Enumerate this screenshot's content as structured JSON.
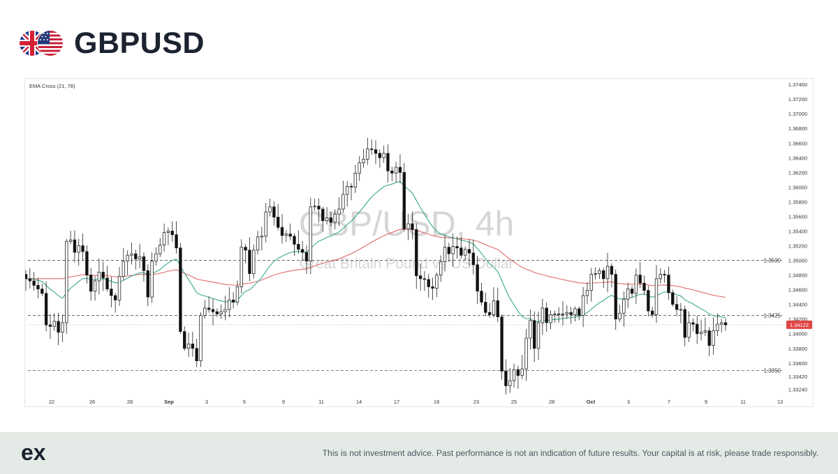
{
  "header": {
    "title": "GBPUSD",
    "flag_left": "uk-flag",
    "flag_right": "us-flag"
  },
  "chart": {
    "indicator_label": "EMA Cross (21, 78)",
    "watermark_title": "GBP/USD, 4h",
    "watermark_subtitle": "Great Britain Pound vs US Dollar",
    "current_price_label": "1.34122",
    "level_labels": [
      "1.3500",
      "1.3425",
      "1.3350"
    ]
  },
  "footer": {
    "logo_text": "ex",
    "disclaimer": "This is not investment advice. Past performance is not an indication of future results. Your capital is at risk, please trade responsibly."
  },
  "colors": {
    "bull": "#ffffff",
    "bear": "#111111",
    "ema_fast": "#3aa88f",
    "ema_slow": "#e06a6a",
    "price_tag": "#e14545",
    "footer_bg": "#e4ebe6"
  },
  "chart_data": {
    "type": "candlestick",
    "y_axis_ticks": [
      "1.37400",
      "1.37200",
      "1.37000",
      "1.36800",
      "1.36600",
      "1.36400",
      "1.36200",
      "1.36000",
      "1.35800",
      "1.35600",
      "1.35400",
      "1.35200",
      "1.35000",
      "1.34800",
      "1.34600",
      "1.34400",
      "1.34200",
      "1.34000",
      "1.33800",
      "1.33600",
      "1.33420",
      "1.33240"
    ],
    "x_axis_ticks": [
      "22",
      "26",
      "28",
      "Sep",
      "3",
      "5",
      "9",
      "11",
      "14",
      "17",
      "19",
      "23",
      "25",
      "28",
      "Oct",
      "3",
      "7",
      "9",
      "11",
      "13"
    ],
    "ylim": [
      1.3318,
      1.3742
    ],
    "horizontal_levels": [
      1.35,
      1.3425,
      1.335
    ],
    "current_price": 1.34122,
    "closes": [
      1.3475,
      1.3472,
      1.3466,
      1.3461,
      1.3455,
      1.3412,
      1.341,
      1.3417,
      1.3402,
      1.3415,
      1.3526,
      1.3528,
      1.3511,
      1.352,
      1.3512,
      1.348,
      1.3458,
      1.3472,
      1.3484,
      1.3476,
      1.3461,
      1.3452,
      1.3446,
      1.3478,
      1.3499,
      1.3507,
      1.3509,
      1.3502,
      1.3505,
      1.3486,
      1.345,
      1.3499,
      1.3509,
      1.3521,
      1.3538,
      1.354,
      1.3535,
      1.3517,
      1.3403,
      1.338,
      1.3386,
      1.338,
      1.3363,
      1.3425,
      1.3435,
      1.3433,
      1.343,
      1.3427,
      1.343,
      1.3433,
      1.3446,
      1.3443,
      1.3464,
      1.3518,
      1.3514,
      1.3482,
      1.3514,
      1.3532,
      1.3533,
      1.3566,
      1.3573,
      1.3559,
      1.3545,
      1.3534,
      1.3536,
      1.3533,
      1.3522,
      1.3515,
      1.3511,
      1.3499,
      1.3573,
      1.3574,
      1.357,
      1.3554,
      1.3558,
      1.3552,
      1.3563,
      1.357,
      1.359,
      1.3601,
      1.36,
      1.3619,
      1.3633,
      1.3638,
      1.3652,
      1.3651,
      1.3646,
      1.364,
      1.3646,
      1.3622,
      1.3619,
      1.3627,
      1.362,
      1.3543,
      1.355,
      1.3542,
      1.3479,
      1.3475,
      1.3474,
      1.3464,
      1.3462,
      1.348,
      1.3498,
      1.3518,
      1.3509,
      1.3519,
      1.3517,
      1.3507,
      1.3515,
      1.351,
      1.3494,
      1.3458,
      1.3443,
      1.3429,
      1.3426,
      1.3445,
      1.3423,
      1.3349,
      1.3329,
      1.3336,
      1.3351,
      1.3343,
      1.3352,
      1.3394,
      1.3418,
      1.338,
      1.3415,
      1.3435,
      1.3415,
      1.3426,
      1.3427,
      1.3426,
      1.3427,
      1.3429,
      1.3426,
      1.3434,
      1.3425,
      1.3452,
      1.3459,
      1.3481,
      1.3482,
      1.3486,
      1.3475,
      1.3492,
      1.3481,
      1.342,
      1.3428,
      1.3447,
      1.3461,
      1.3455,
      1.348,
      1.3469,
      1.3459,
      1.3431,
      1.3426,
      1.3475,
      1.3481,
      1.348,
      1.3456,
      1.344,
      1.3433,
      1.3433,
      1.3395,
      1.3415,
      1.3413,
      1.34,
      1.3402,
      1.3404,
      1.3384,
      1.3404,
      1.3413,
      1.3415,
      1.3412
    ]
  }
}
